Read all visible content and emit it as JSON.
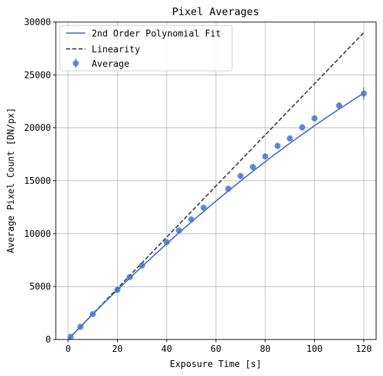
{
  "chart_data": {
    "type": "scatter",
    "title": "Pixel Averages",
    "xlabel": "Exposure Time [s]",
    "ylabel": "Average Pixel Count [DN/px]",
    "xlim": [
      -5,
      125
    ],
    "ylim": [
      0,
      30000
    ],
    "xticks": [
      0,
      20,
      40,
      60,
      80,
      100,
      120
    ],
    "yticks": [
      0,
      5000,
      10000,
      15000,
      20000,
      25000,
      30000
    ],
    "grid": true,
    "legend_position": "top-left",
    "series": [
      {
        "name": "Average",
        "kind": "errorbar",
        "color": "#4472c4",
        "x": [
          1,
          5,
          10,
          20,
          25,
          30,
          40,
          45,
          50,
          55,
          65,
          70,
          75,
          80,
          85,
          90,
          95,
          100,
          110,
          120
        ],
        "y": [
          250,
          1200,
          2400,
          4700,
          5900,
          7000,
          9200,
          10300,
          11350,
          12450,
          14250,
          15450,
          16300,
          17300,
          18300,
          19000,
          20050,
          20900,
          22100,
          23250
        ],
        "yerr": [
          60,
          80,
          100,
          110,
          110,
          120,
          130,
          140,
          140,
          150,
          170,
          180,
          190,
          200,
          210,
          230,
          250,
          270,
          350,
          600
        ]
      },
      {
        "name": "2nd Order Polynomial Fit",
        "kind": "line",
        "color": "#4472c4",
        "coefficients": [
          0,
          242,
          -0.4
        ]
      },
      {
        "name": "Linearity",
        "kind": "dashed-line",
        "color": "#404040",
        "x": [
          0,
          120
        ],
        "y": [
          0,
          29000
        ]
      }
    ]
  }
}
